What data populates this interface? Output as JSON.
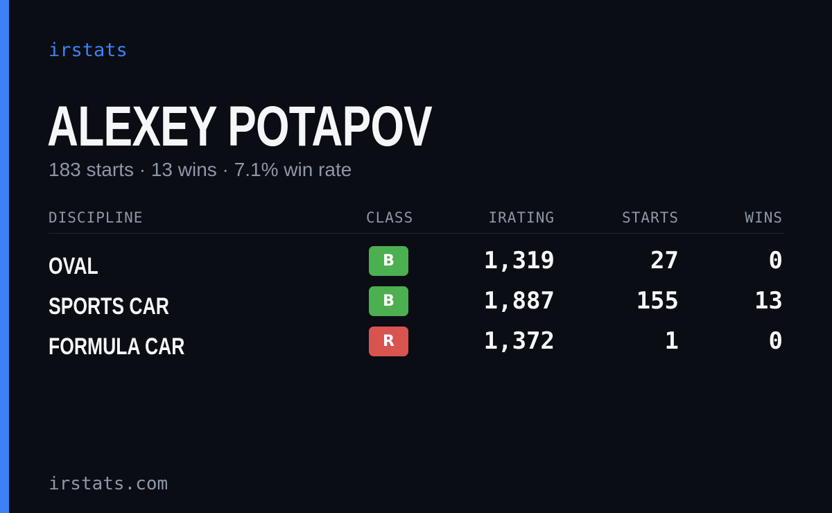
{
  "brand": "irstats",
  "driver": {
    "name": "ALEXEY POTAPOV",
    "summary": "183 starts · 13 wins · 7.1% win rate"
  },
  "table": {
    "headers": {
      "discipline": "DISCIPLINE",
      "class": "CLASS",
      "irating": "IRATING",
      "starts": "STARTS",
      "wins": "WINS"
    },
    "rows": [
      {
        "discipline": "OVAL",
        "class": "B",
        "class_color": "#4caf50",
        "irating": "1,319",
        "starts": "27",
        "wins": "0"
      },
      {
        "discipline": "SPORTS CAR",
        "class": "B",
        "class_color": "#4caf50",
        "irating": "1,887",
        "starts": "155",
        "wins": "13"
      },
      {
        "discipline": "FORMULA CAR",
        "class": "R",
        "class_color": "#d9534f",
        "irating": "1,372",
        "starts": "1",
        "wins": "0"
      }
    ]
  },
  "footer": "irstats.com",
  "colors": {
    "accent": "#3b82f6",
    "background": "#0a0d14",
    "class_b": "#4caf50",
    "class_r": "#d9534f"
  }
}
